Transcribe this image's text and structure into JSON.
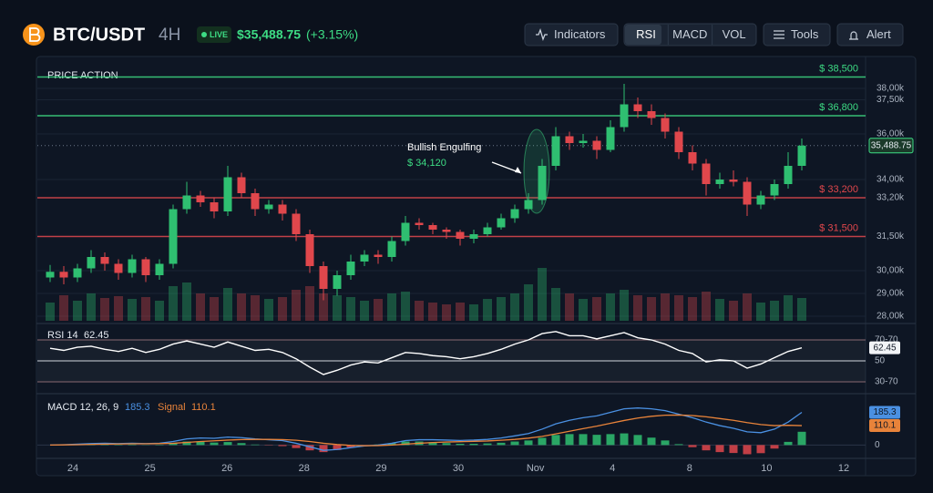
{
  "header": {
    "symbol": "BTC/USDT",
    "interval": "4H",
    "status": "LIVE",
    "price": "$35,488.75",
    "change": "(+3.15%)"
  },
  "toolbar": {
    "indicators": "Indicators",
    "studies": [
      "RSI",
      "MACD",
      "VOL"
    ],
    "active_study": "RSI",
    "tools": "Tools",
    "alert": "Alert"
  },
  "chart_data": {
    "type": "candlestick",
    "title": "PRICE ACTION",
    "colors": {
      "up": "#2fbf71",
      "down": "#e0474c"
    },
    "ylim": [
      27800,
      39000
    ],
    "yticks": [
      {
        "value": 38000,
        "label": "38,00k"
      },
      {
        "value": 37500,
        "label": "37,50k"
      },
      {
        "value": 36000,
        "label": "36,00k"
      },
      {
        "value": 34000,
        "label": "34,00k"
      },
      {
        "value": 33200,
        "label": "33,20k"
      },
      {
        "value": 31500,
        "label": "31,50k"
      },
      {
        "value": 30000,
        "label": "30,00k"
      },
      {
        "value": 29000,
        "label": "29,00k"
      },
      {
        "value": 28000,
        "label": "28,00k"
      }
    ],
    "levels": [
      {
        "value": 38500,
        "label": "$ 38,500",
        "color": "#3ddc84"
      },
      {
        "value": 36800,
        "label": "$ 36,800",
        "color": "#3ddc84"
      },
      {
        "value": 33200,
        "label": "$ 33,200",
        "color": "#e0474c"
      },
      {
        "value": 31500,
        "label": "$ 31,500",
        "color": "#e0474c"
      }
    ],
    "last_price": {
      "value": 35488.75,
      "label": "35,488.75"
    },
    "annotation": {
      "text": "Bullish Engulfing",
      "price": {
        "value": 34120,
        "label": "$ 34,120"
      }
    },
    "x_labels": [
      "24",
      "25",
      "26",
      "28",
      "29",
      "30",
      "Nov",
      "4",
      "8",
      "10",
      "12"
    ],
    "candles": [
      [
        29700,
        30250,
        29500,
        29950
      ],
      [
        29950,
        30200,
        29400,
        29700
      ],
      [
        29700,
        30300,
        29500,
        30100
      ],
      [
        30100,
        30900,
        29900,
        30600
      ],
      [
        30600,
        30800,
        30000,
        30300
      ],
      [
        30300,
        30500,
        29600,
        29900
      ],
      [
        29900,
        30700,
        29700,
        30500
      ],
      [
        30500,
        30600,
        29500,
        29800
      ],
      [
        29800,
        30500,
        29600,
        30300
      ],
      [
        30300,
        32900,
        30100,
        32700
      ],
      [
        32700,
        33900,
        32500,
        33300
      ],
      [
        33300,
        33500,
        32800,
        33000
      ],
      [
        33000,
        33200,
        32300,
        32600
      ],
      [
        32600,
        34600,
        32400,
        34100
      ],
      [
        34100,
        34300,
        33200,
        33400
      ],
      [
        33400,
        33600,
        32400,
        32700
      ],
      [
        32700,
        33100,
        32500,
        32900
      ],
      [
        32900,
        33100,
        32200,
        32500
      ],
      [
        32500,
        32700,
        31300,
        31600
      ],
      [
        31600,
        31800,
        29900,
        30200
      ],
      [
        30200,
        30400,
        28700,
        29200
      ],
      [
        29200,
        30000,
        28900,
        29800
      ],
      [
        29800,
        30700,
        29600,
        30400
      ],
      [
        30400,
        30900,
        30200,
        30700
      ],
      [
        30700,
        30900,
        30300,
        30600
      ],
      [
        30600,
        31500,
        30400,
        31300
      ],
      [
        31300,
        32400,
        31100,
        32100
      ],
      [
        32100,
        32300,
        31800,
        32000
      ],
      [
        32000,
        32100,
        31600,
        31800
      ],
      [
        31800,
        31900,
        31400,
        31700
      ],
      [
        31700,
        31800,
        31100,
        31400
      ],
      [
        31400,
        31800,
        31200,
        31600
      ],
      [
        31600,
        32100,
        31500,
        31900
      ],
      [
        31900,
        32500,
        31800,
        32300
      ],
      [
        32300,
        32900,
        32100,
        32700
      ],
      [
        32700,
        33400,
        32500,
        33100
      ],
      [
        33100,
        34900,
        32900,
        34600
      ],
      [
        34600,
        36300,
        34400,
        35900
      ],
      [
        35900,
        36100,
        35300,
        35600
      ],
      [
        35600,
        36000,
        35400,
        35700
      ],
      [
        35700,
        35900,
        34900,
        35300
      ],
      [
        35300,
        36600,
        35200,
        36300
      ],
      [
        36300,
        38200,
        36100,
        37300
      ],
      [
        37300,
        37600,
        36700,
        37000
      ],
      [
        37000,
        37300,
        36400,
        36700
      ],
      [
        36700,
        36900,
        35800,
        36100
      ],
      [
        36100,
        36300,
        34900,
        35200
      ],
      [
        35200,
        35500,
        34400,
        34700
      ],
      [
        34700,
        34900,
        33300,
        33800
      ],
      [
        33800,
        34300,
        33600,
        34000
      ],
      [
        34000,
        34400,
        33700,
        33900
      ],
      [
        33900,
        34100,
        32400,
        32900
      ],
      [
        32900,
        33500,
        32700,
        33300
      ],
      [
        33300,
        34000,
        33100,
        33800
      ],
      [
        33800,
        35200,
        33600,
        34600
      ],
      [
        34600,
        35800,
        34400,
        35488.75
      ]
    ],
    "volume": [
      20,
      28,
      22,
      30,
      25,
      27,
      24,
      26,
      22,
      38,
      42,
      30,
      26,
      36,
      30,
      28,
      24,
      26,
      34,
      38,
      30,
      28,
      26,
      22,
      24,
      30,
      32,
      22,
      20,
      18,
      20,
      18,
      24,
      26,
      30,
      40,
      58,
      36,
      30,
      24,
      26,
      30,
      34,
      28,
      26,
      30,
      28,
      26,
      32,
      24,
      22,
      30,
      20,
      22,
      28,
      25
    ],
    "rsi": {
      "label": "RSI 14",
      "color": "#ffffff",
      "ylim": [
        20,
        80
      ],
      "yticks": [
        {
          "value": 70,
          "label": "70-70"
        },
        50,
        {
          "value": 30,
          "label": "30-70"
        }
      ],
      "values": [
        62,
        60,
        63,
        64,
        61,
        59,
        62,
        58,
        61,
        66,
        69,
        66,
        63,
        68,
        64,
        60,
        61,
        58,
        52,
        44,
        37,
        41,
        46,
        49,
        48,
        53,
        58,
        57,
        55,
        54,
        52,
        54,
        57,
        61,
        66,
        70,
        76,
        78,
        74,
        74,
        71,
        74,
        77,
        72,
        70,
        66,
        60,
        57,
        49,
        51,
        50,
        43,
        47,
        53,
        59,
        62.45
      ]
    },
    "macd": {
      "label": "MACD 12, 26, 9",
      "signal_label": "Signal",
      "macd_color": "#4a90e2",
      "signal_color": "#e8833a",
      "ylim": [
        -60,
        260
      ],
      "yticks": [
        0
      ],
      "macd": [
        0,
        2,
        5,
        8,
        10,
        8,
        10,
        8,
        10,
        20,
        35,
        40,
        38,
        45,
        42,
        35,
        30,
        25,
        10,
        -10,
        -30,
        -25,
        -15,
        -5,
        0,
        10,
        25,
        30,
        30,
        28,
        26,
        28,
        32,
        40,
        52,
        65,
        90,
        120,
        140,
        155,
        165,
        185,
        205,
        210,
        205,
        195,
        175,
        155,
        130,
        110,
        95,
        75,
        70,
        90,
        130,
        185.3
      ],
      "signal": [
        0,
        1,
        2,
        4,
        5,
        6,
        7,
        7,
        8,
        10,
        15,
        20,
        24,
        28,
        31,
        32,
        32,
        31,
        27,
        20,
        10,
        3,
        -2,
        -4,
        -3,
        0,
        5,
        10,
        14,
        17,
        19,
        21,
        23,
        27,
        32,
        39,
        49,
        63,
        78,
        93,
        107,
        123,
        139,
        153,
        163,
        169,
        170,
        167,
        160,
        150,
        140,
        127,
        116,
        110,
        112,
        110.1
      ],
      "histogram": [
        0,
        1,
        3,
        4,
        5,
        2,
        3,
        1,
        2,
        10,
        20,
        20,
        14,
        17,
        11,
        3,
        -2,
        -6,
        -17,
        -30,
        -40,
        -28,
        -13,
        -1,
        3,
        10,
        20,
        20,
        16,
        11,
        7,
        7,
        9,
        13,
        20,
        26,
        41,
        57,
        62,
        62,
        58,
        62,
        66,
        57,
        42,
        26,
        5,
        -12,
        -30,
        -40,
        -45,
        -52,
        -46,
        -20,
        18,
        75.2
      ]
    }
  }
}
